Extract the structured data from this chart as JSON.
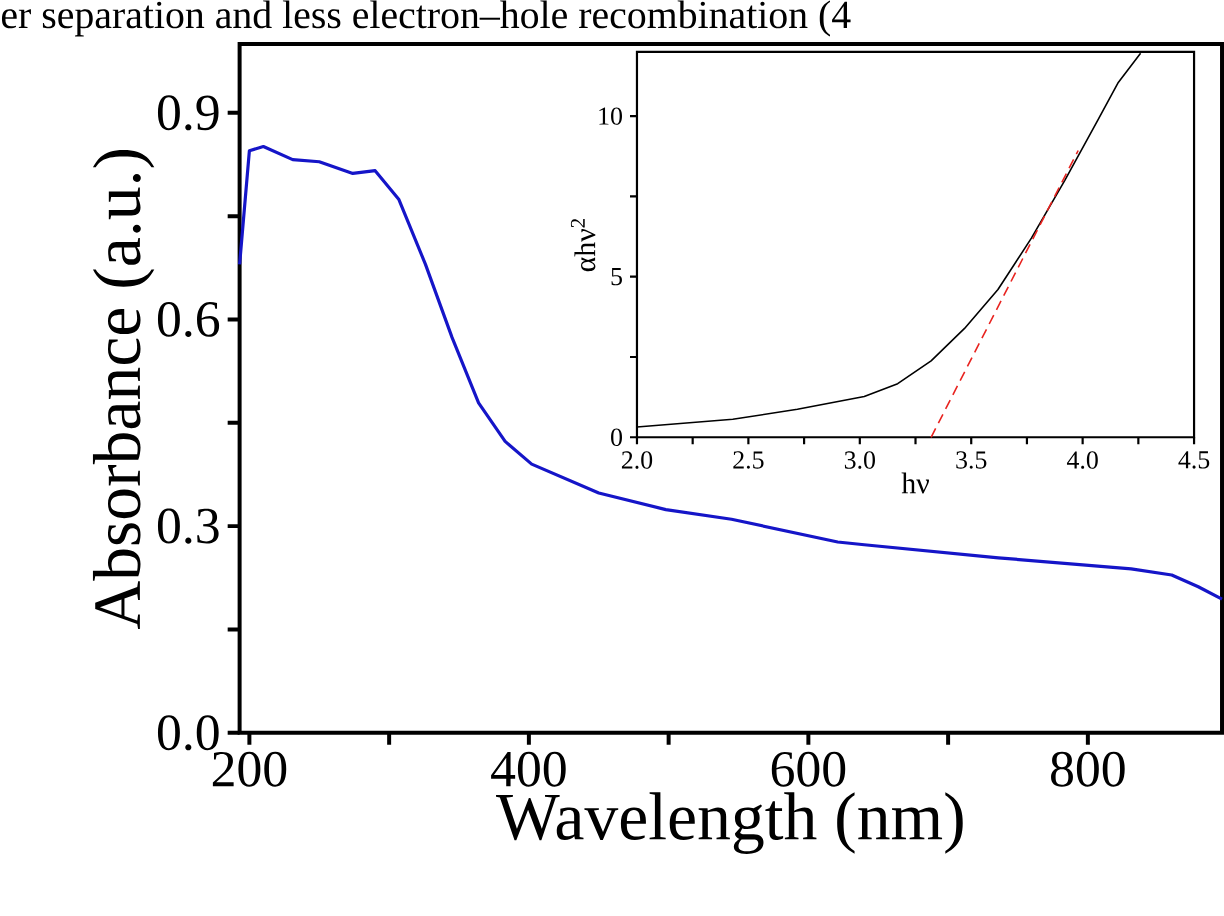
{
  "chart_data": [
    {
      "type": "line",
      "xlabel": "Wavelength (nm)",
      "ylabel": "Absorbance (a.u.)",
      "annotations": [
        "er separation and less electron–hole recombination (4"
      ],
      "xlim": [
        193,
        896
      ],
      "ylim": [
        0,
        1.0
      ],
      "xticks": [
        200,
        {
          "value": 300,
          "label": null
        },
        400,
        {
          "value": 500,
          "label": null
        },
        600,
        {
          "value": 700,
          "label": null
        },
        800
      ],
      "yticks": [
        {
          "value": 0,
          "label": "0.0"
        },
        {
          "value": 0.15,
          "label": null
        },
        0.3,
        {
          "value": 0.45,
          "label": null
        },
        0.6,
        {
          "value": 0.75,
          "label": null
        },
        0.9
      ],
      "x": [
        193,
        200,
        210,
        231,
        250,
        274,
        290,
        307,
        326,
        345,
        364,
        383,
        402,
        450,
        498,
        545,
        621,
        640,
        736,
        831,
        860,
        879,
        896
      ],
      "series": [
        {
          "color": "#1515c8",
          "values": [
            0.68,
            0.845,
            0.851,
            0.832,
            0.829,
            0.812,
            0.816,
            0.774,
            0.68,
            0.574,
            0.479,
            0.423,
            0.39,
            0.348,
            0.324,
            0.31,
            0.277,
            0.273,
            0.254,
            0.238,
            0.229,
            0.212,
            0.194
          ]
        }
      ]
    },
    {
      "type": "line",
      "xlabel": "hν",
      "ylabel": "αhν$^{2}$",
      "xlim": [
        2.0,
        4.5
      ],
      "ylim": [
        0,
        12
      ],
      "xticks": [
        {
          "value": 2,
          "label": "2.0"
        },
        {
          "value": 2.25,
          "label": null
        },
        2.5,
        {
          "value": 2.75,
          "label": null
        },
        {
          "value": 3,
          "label": "3.0"
        },
        {
          "value": 3.25,
          "label": null
        },
        3.5,
        {
          "value": 3.75,
          "label": null
        },
        {
          "value": 4,
          "label": "4.0"
        },
        {
          "value": 4.25,
          "label": null
        },
        4.5
      ],
      "yticks": [
        0,
        {
          "value": 2.5,
          "label": null
        },
        5,
        {
          "value": 7.5,
          "label": null
        },
        10
      ],
      "x": [
        2.0,
        2.43,
        2.72,
        3.02,
        3.17,
        3.32,
        3.47,
        3.62,
        3.77,
        3.92,
        4.07,
        4.16,
        4.26
      ],
      "series": [
        {
          "color": "#000000",
          "values": [
            0.32,
            0.56,
            0.87,
            1.27,
            1.67,
            2.38,
            3.39,
            4.6,
            6.2,
            8.0,
            9.9,
            11.05,
            11.96
          ]
        },
        {
          "color": "#e8231f",
          "line_style": "dashed",
          "x": [
            3.32,
            3.98
          ],
          "values": [
            0,
            8.93
          ]
        }
      ]
    }
  ]
}
